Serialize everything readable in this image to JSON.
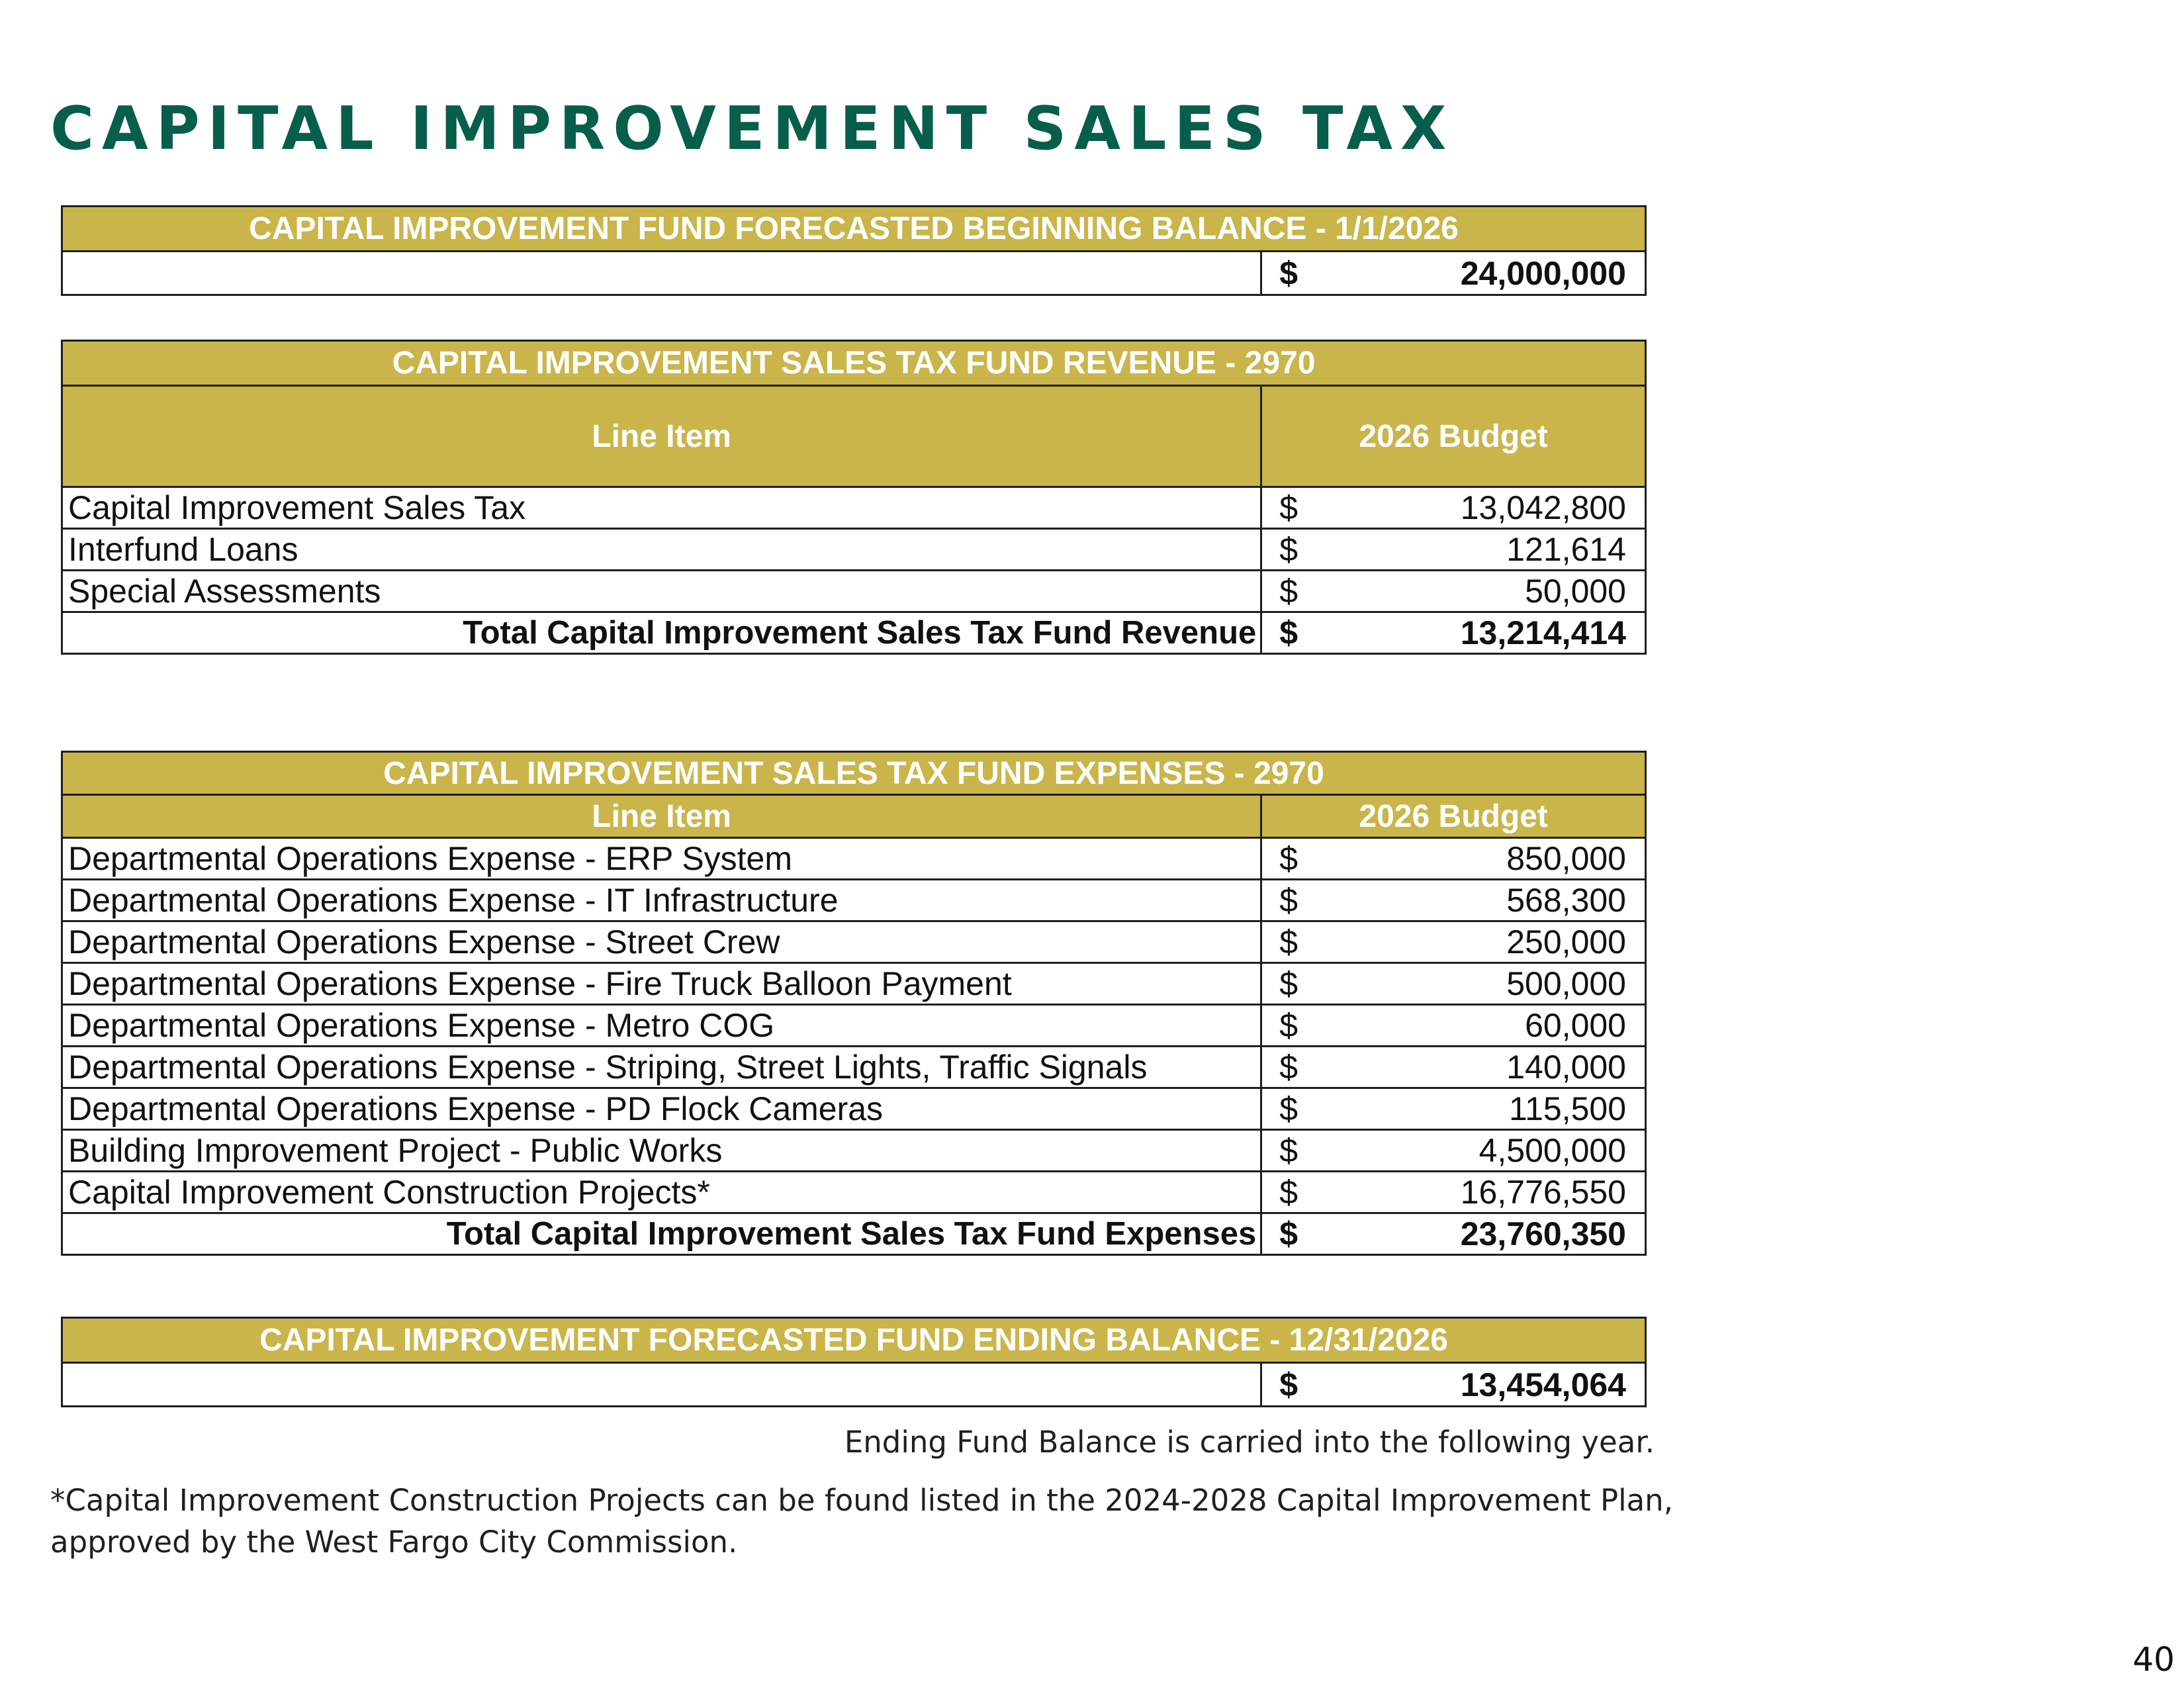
{
  "page_title": "CAPITAL IMPROVEMENT SALES TAX",
  "beginning_balance": {
    "header": "CAPITAL IMPROVEMENT FUND FORECASTED BEGINNING BALANCE - 1/1/2026",
    "currency": "$",
    "amount": "24,000,000"
  },
  "revenue": {
    "header": "CAPITAL IMPROVEMENT SALES TAX FUND REVENUE - 2970",
    "col_line_item": "Line Item",
    "col_budget": "2026 Budget",
    "rows": [
      {
        "label": "Capital Improvement Sales Tax",
        "currency": "$",
        "amount": "13,042,800"
      },
      {
        "label": "Interfund Loans",
        "currency": "$",
        "amount": "121,614"
      },
      {
        "label": "Special Assessments",
        "currency": "$",
        "amount": "50,000"
      }
    ],
    "total": {
      "label": "Total Capital Improvement Sales Tax Fund Revenue",
      "currency": "$",
      "amount": "13,214,414"
    }
  },
  "expenses": {
    "header": "CAPITAL IMPROVEMENT SALES TAX FUND EXPENSES - 2970",
    "col_line_item": "Line Item",
    "col_budget": "2026 Budget",
    "rows": [
      {
        "label": "Departmental Operations Expense - ERP System",
        "currency": "$",
        "amount": "850,000"
      },
      {
        "label": "Departmental Operations Expense - IT Infrastructure",
        "currency": "$",
        "amount": "568,300"
      },
      {
        "label": "Departmental Operations Expense - Street Crew",
        "currency": "$",
        "amount": "250,000"
      },
      {
        "label": "Departmental Operations Expense - Fire Truck Balloon Payment",
        "currency": "$",
        "amount": "500,000"
      },
      {
        "label": "Departmental Operations Expense - Metro COG",
        "currency": "$",
        "amount": "60,000"
      },
      {
        "label": "Departmental Operations Expense - Striping, Street Lights, Traffic Signals",
        "currency": "$",
        "amount": "140,000"
      },
      {
        "label": "Departmental Operations Expense - PD Flock Cameras",
        "currency": "$",
        "amount": "115,500"
      },
      {
        "label": "Building Improvement Project - Public Works",
        "currency": "$",
        "amount": "4,500,000"
      },
      {
        "label": "Capital Improvement Construction Projects*",
        "currency": "$",
        "amount": "16,776,550"
      }
    ],
    "total": {
      "label": "Total Capital Improvement Sales Tax Fund Expenses",
      "currency": "$",
      "amount": "23,760,350"
    }
  },
  "ending_balance": {
    "header": "CAPITAL IMPROVEMENT FORECASTED FUND ENDING BALANCE - 12/31/2026",
    "currency": "$",
    "amount": "13,454,064"
  },
  "notes": {
    "carryover": "Ending Fund Balance is carried into the following year.",
    "footnote_line1": "*Capital Improvement Construction Projects can be found listed in the 2024-2028 Capital Improvement Plan,",
    "footnote_line2": "approved by the West Fargo City Commission."
  },
  "page_number": "40",
  "colors": {
    "title_green": "#075e4a",
    "header_gold": "#c9b54a",
    "header_text": "#ffffff"
  }
}
